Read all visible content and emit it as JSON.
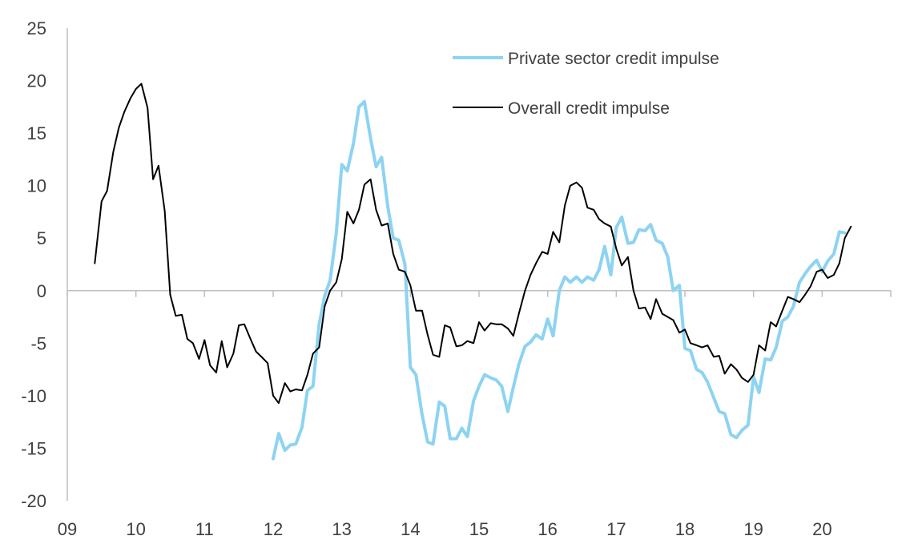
{
  "chart_data": {
    "type": "line",
    "title": "",
    "xlabel": "",
    "ylabel": "",
    "xlim": [
      2009.0,
      2021.0
    ],
    "ylim": [
      -20,
      25
    ],
    "y_ticks": [
      25,
      20,
      15,
      10,
      5,
      0,
      -5,
      -10,
      -15,
      -20
    ],
    "x_ticks": [
      {
        "value": 2009,
        "label": "09"
      },
      {
        "value": 2010,
        "label": "10"
      },
      {
        "value": 2011,
        "label": "11"
      },
      {
        "value": 2012,
        "label": "12"
      },
      {
        "value": 2013,
        "label": "13"
      },
      {
        "value": 2014,
        "label": "14"
      },
      {
        "value": 2015,
        "label": "15"
      },
      {
        "value": 2016,
        "label": "16"
      },
      {
        "value": 2017,
        "label": "17"
      },
      {
        "value": 2018,
        "label": "18"
      },
      {
        "value": 2019,
        "label": "19"
      },
      {
        "value": 2020,
        "label": "20"
      }
    ],
    "grid": false,
    "legend_position": "top-right",
    "series": [
      {
        "name": "Private sector credit impulse",
        "color": "#8dd3f2",
        "width": 4,
        "points": [
          [
            2012.0,
            -16.0
          ],
          [
            2012.08,
            -13.6
          ],
          [
            2012.17,
            -15.2
          ],
          [
            2012.25,
            -14.7
          ],
          [
            2012.33,
            -14.6
          ],
          [
            2012.42,
            -13.0
          ],
          [
            2012.5,
            -9.5
          ],
          [
            2012.58,
            -9.1
          ],
          [
            2012.67,
            -3.2
          ],
          [
            2012.75,
            -0.5
          ],
          [
            2012.83,
            1.0
          ],
          [
            2012.92,
            5.5
          ],
          [
            2013.0,
            12.0
          ],
          [
            2013.08,
            11.4
          ],
          [
            2013.17,
            14.0
          ],
          [
            2013.25,
            17.5
          ],
          [
            2013.33,
            18.0
          ],
          [
            2013.42,
            14.5
          ],
          [
            2013.5,
            11.8
          ],
          [
            2013.58,
            12.7
          ],
          [
            2013.67,
            8.0
          ],
          [
            2013.75,
            5.0
          ],
          [
            2013.83,
            4.8
          ],
          [
            2013.92,
            2.5
          ],
          [
            2014.0,
            -7.3
          ],
          [
            2014.08,
            -8.0
          ],
          [
            2014.17,
            -11.8
          ],
          [
            2014.25,
            -14.4
          ],
          [
            2014.33,
            -14.6
          ],
          [
            2014.42,
            -10.6
          ],
          [
            2014.5,
            -11.0
          ],
          [
            2014.58,
            -14.1
          ],
          [
            2014.67,
            -14.1
          ],
          [
            2014.75,
            -13.1
          ],
          [
            2014.83,
            -13.9
          ],
          [
            2014.92,
            -10.5
          ],
          [
            2015.0,
            -9.1
          ],
          [
            2015.08,
            -8.0
          ],
          [
            2015.17,
            -8.3
          ],
          [
            2015.25,
            -8.5
          ],
          [
            2015.33,
            -9.1
          ],
          [
            2015.42,
            -11.5
          ],
          [
            2015.5,
            -9.2
          ],
          [
            2015.58,
            -7.0
          ],
          [
            2015.67,
            -5.3
          ],
          [
            2015.75,
            -4.9
          ],
          [
            2015.83,
            -4.2
          ],
          [
            2015.92,
            -4.6
          ],
          [
            2016.0,
            -2.7
          ],
          [
            2016.08,
            -4.3
          ],
          [
            2016.17,
            0.0
          ],
          [
            2016.25,
            1.3
          ],
          [
            2016.33,
            0.8
          ],
          [
            2016.42,
            1.3
          ],
          [
            2016.5,
            0.8
          ],
          [
            2016.58,
            1.3
          ],
          [
            2016.67,
            1.0
          ],
          [
            2016.75,
            2.0
          ],
          [
            2016.83,
            4.2
          ],
          [
            2016.92,
            1.5
          ],
          [
            2017.0,
            6.0
          ],
          [
            2017.08,
            7.0
          ],
          [
            2017.17,
            4.5
          ],
          [
            2017.25,
            4.6
          ],
          [
            2017.33,
            5.8
          ],
          [
            2017.42,
            5.7
          ],
          [
            2017.5,
            6.3
          ],
          [
            2017.58,
            4.8
          ],
          [
            2017.67,
            4.5
          ],
          [
            2017.75,
            3.2
          ],
          [
            2017.83,
            0.0
          ],
          [
            2017.92,
            0.5
          ],
          [
            2018.0,
            -5.5
          ],
          [
            2018.08,
            -5.7
          ],
          [
            2018.17,
            -7.5
          ],
          [
            2018.25,
            -7.8
          ],
          [
            2018.33,
            -8.7
          ],
          [
            2018.42,
            -10.2
          ],
          [
            2018.5,
            -11.5
          ],
          [
            2018.58,
            -11.7
          ],
          [
            2018.67,
            -13.7
          ],
          [
            2018.75,
            -14.0
          ],
          [
            2018.83,
            -13.3
          ],
          [
            2018.92,
            -12.8
          ],
          [
            2019.0,
            -8.2
          ],
          [
            2019.08,
            -9.7
          ],
          [
            2019.17,
            -6.5
          ],
          [
            2019.25,
            -6.6
          ],
          [
            2019.33,
            -5.4
          ],
          [
            2019.42,
            -2.9
          ],
          [
            2019.5,
            -2.5
          ],
          [
            2019.58,
            -1.5
          ],
          [
            2019.67,
            0.8
          ],
          [
            2019.75,
            1.6
          ],
          [
            2019.83,
            2.3
          ],
          [
            2019.92,
            2.9
          ],
          [
            2020.0,
            1.8
          ],
          [
            2020.08,
            2.8
          ],
          [
            2020.17,
            3.5
          ],
          [
            2020.25,
            5.6
          ],
          [
            2020.33,
            5.5
          ]
        ]
      },
      {
        "name": "Overall credit impulse",
        "color": "#000000",
        "width": 2,
        "points": [
          [
            2009.4,
            2.6
          ],
          [
            2009.5,
            8.5
          ],
          [
            2009.58,
            9.5
          ],
          [
            2009.67,
            13.2
          ],
          [
            2009.75,
            15.5
          ],
          [
            2009.83,
            17.0
          ],
          [
            2009.92,
            18.3
          ],
          [
            2010.0,
            19.2
          ],
          [
            2010.08,
            19.7
          ],
          [
            2010.17,
            17.4
          ],
          [
            2010.25,
            10.6
          ],
          [
            2010.33,
            11.9
          ],
          [
            2010.42,
            7.6
          ],
          [
            2010.5,
            -0.4
          ],
          [
            2010.58,
            -2.4
          ],
          [
            2010.67,
            -2.3
          ],
          [
            2010.75,
            -4.6
          ],
          [
            2010.83,
            -5.0
          ],
          [
            2010.92,
            -6.5
          ],
          [
            2011.0,
            -4.7
          ],
          [
            2011.08,
            -7.1
          ],
          [
            2011.17,
            -7.8
          ],
          [
            2011.25,
            -4.8
          ],
          [
            2011.33,
            -7.3
          ],
          [
            2011.42,
            -6.0
          ],
          [
            2011.5,
            -3.3
          ],
          [
            2011.58,
            -3.2
          ],
          [
            2011.67,
            -4.6
          ],
          [
            2011.75,
            -5.8
          ],
          [
            2011.83,
            -6.3
          ],
          [
            2011.92,
            -6.9
          ],
          [
            2012.0,
            -10.0
          ],
          [
            2012.08,
            -10.7
          ],
          [
            2012.17,
            -8.8
          ],
          [
            2012.25,
            -9.6
          ],
          [
            2012.33,
            -9.4
          ],
          [
            2012.42,
            -9.5
          ],
          [
            2012.5,
            -8.0
          ],
          [
            2012.58,
            -6.0
          ],
          [
            2012.67,
            -5.4
          ],
          [
            2012.75,
            -1.5
          ],
          [
            2012.83,
            0.0
          ],
          [
            2012.92,
            0.8
          ],
          [
            2013.0,
            3.0
          ],
          [
            2013.08,
            7.5
          ],
          [
            2013.17,
            6.4
          ],
          [
            2013.25,
            7.7
          ],
          [
            2013.33,
            10.1
          ],
          [
            2013.42,
            10.6
          ],
          [
            2013.5,
            7.7
          ],
          [
            2013.58,
            6.2
          ],
          [
            2013.67,
            6.4
          ],
          [
            2013.75,
            3.5
          ],
          [
            2013.83,
            2.0
          ],
          [
            2013.92,
            1.8
          ],
          [
            2014.0,
            0.5
          ],
          [
            2014.08,
            -1.9
          ],
          [
            2014.17,
            -1.9
          ],
          [
            2014.25,
            -4.2
          ],
          [
            2014.33,
            -6.1
          ],
          [
            2014.42,
            -6.3
          ],
          [
            2014.5,
            -3.3
          ],
          [
            2014.58,
            -3.5
          ],
          [
            2014.67,
            -5.3
          ],
          [
            2014.75,
            -5.2
          ],
          [
            2014.83,
            -4.8
          ],
          [
            2014.92,
            -5.0
          ],
          [
            2015.0,
            -3.0
          ],
          [
            2015.08,
            -3.8
          ],
          [
            2015.17,
            -3.1
          ],
          [
            2015.25,
            -3.2
          ],
          [
            2015.33,
            -3.2
          ],
          [
            2015.42,
            -3.6
          ],
          [
            2015.5,
            -4.3
          ],
          [
            2015.58,
            -2.2
          ],
          [
            2015.67,
            0.0
          ],
          [
            2015.75,
            1.5
          ],
          [
            2015.83,
            2.6
          ],
          [
            2015.92,
            3.7
          ],
          [
            2016.0,
            3.5
          ],
          [
            2016.08,
            5.6
          ],
          [
            2016.17,
            4.6
          ],
          [
            2016.25,
            8.1
          ],
          [
            2016.33,
            10.0
          ],
          [
            2016.42,
            10.3
          ],
          [
            2016.5,
            9.8
          ],
          [
            2016.58,
            7.9
          ],
          [
            2016.67,
            7.7
          ],
          [
            2016.75,
            6.8
          ],
          [
            2016.83,
            6.4
          ],
          [
            2016.92,
            6.1
          ],
          [
            2017.0,
            4.0
          ],
          [
            2017.08,
            2.4
          ],
          [
            2017.17,
            3.2
          ],
          [
            2017.25,
            0.0
          ],
          [
            2017.33,
            -1.7
          ],
          [
            2017.42,
            -1.6
          ],
          [
            2017.5,
            -2.7
          ],
          [
            2017.58,
            -0.8
          ],
          [
            2017.67,
            -2.2
          ],
          [
            2017.75,
            -2.5
          ],
          [
            2017.83,
            -2.8
          ],
          [
            2017.92,
            -4.0
          ],
          [
            2018.0,
            -3.7
          ],
          [
            2018.08,
            -5.0
          ],
          [
            2018.17,
            -5.2
          ],
          [
            2018.25,
            -5.4
          ],
          [
            2018.33,
            -5.2
          ],
          [
            2018.42,
            -6.3
          ],
          [
            2018.5,
            -6.2
          ],
          [
            2018.58,
            -7.9
          ],
          [
            2018.67,
            -7.0
          ],
          [
            2018.75,
            -7.5
          ],
          [
            2018.83,
            -8.3
          ],
          [
            2018.92,
            -8.7
          ],
          [
            2019.0,
            -8.0
          ],
          [
            2019.08,
            -5.2
          ],
          [
            2019.17,
            -5.7
          ],
          [
            2019.25,
            -3.0
          ],
          [
            2019.33,
            -3.4
          ],
          [
            2019.42,
            -1.9
          ],
          [
            2019.5,
            -0.6
          ],
          [
            2019.58,
            -0.8
          ],
          [
            2019.67,
            -1.1
          ],
          [
            2019.75,
            -0.4
          ],
          [
            2019.83,
            0.4
          ],
          [
            2019.92,
            1.8
          ],
          [
            2020.0,
            2.0
          ],
          [
            2020.08,
            1.2
          ],
          [
            2020.17,
            1.5
          ],
          [
            2020.25,
            2.6
          ],
          [
            2020.33,
            5.0
          ],
          [
            2020.42,
            6.1
          ]
        ]
      }
    ]
  }
}
